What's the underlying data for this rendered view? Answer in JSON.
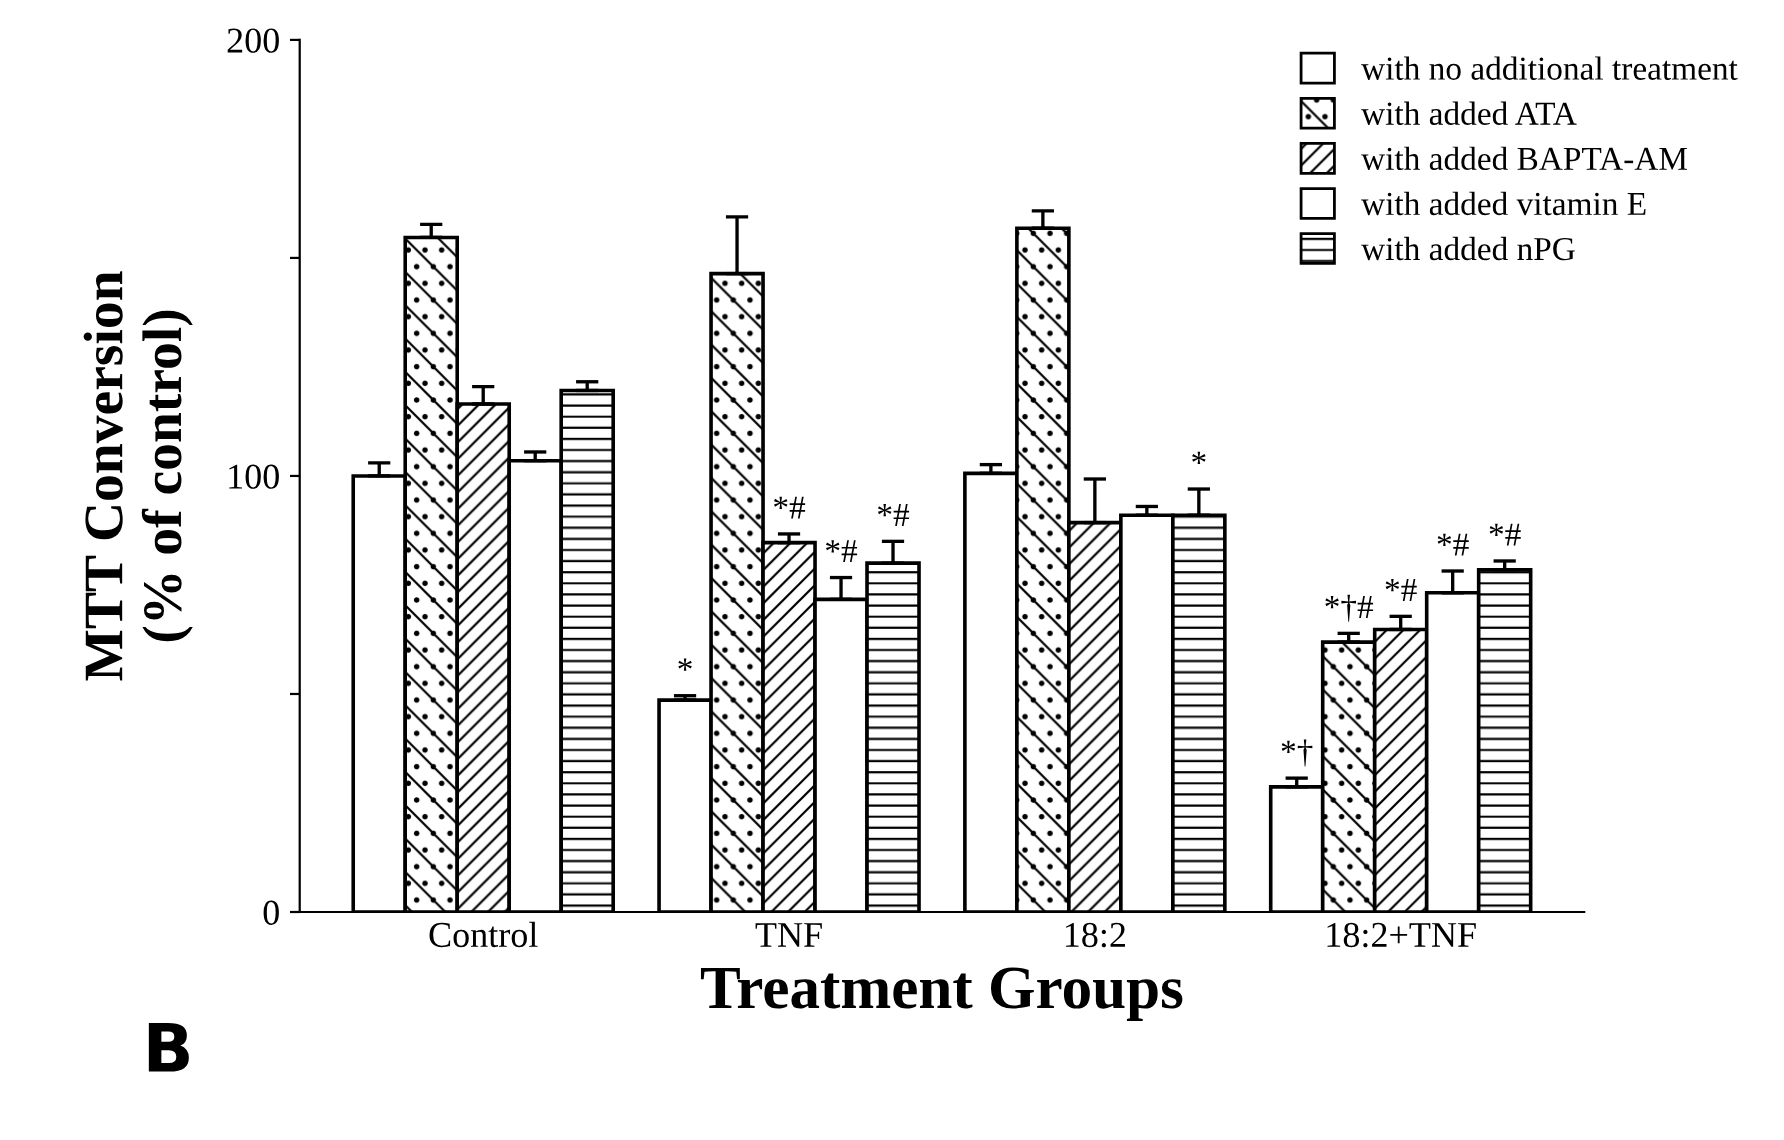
{
  "chart_data": {
    "type": "bar",
    "xlabel": "Treatment Groups",
    "ylabel": "MTT Conversion\n(% of control)",
    "categories": [
      "Control",
      "TNF",
      "18:2",
      "18:2+TNF"
    ],
    "series": [
      {
        "name": "with no additional treatment",
        "color": "#ffffff",
        "values": [
          100,
          48.6,
          100.6,
          28.7
        ],
        "errors": [
          3,
          1,
          2,
          2
        ],
        "value_labels": [
          null,
          "*",
          null,
          "*†"
        ]
      },
      {
        "name": "with added ATA",
        "color": "#000000",
        "values": [
          154.7,
          146.4,
          156.8,
          61.9
        ],
        "errors": [
          3,
          13,
          4,
          2
        ],
        "value_labels": [
          null,
          null,
          null,
          "*†#"
        ]
      },
      {
        "name": "with added BAPTA-AM",
        "color": "#000000",
        "values": [
          116.5,
          84.7,
          89.3,
          64.8
        ],
        "errors": [
          4,
          2,
          10,
          3
        ],
        "value_labels": [
          null,
          "*#",
          null,
          "*#"
        ]
      },
      {
        "name": "with added vitamin E",
        "color": "#ffffff",
        "values": [
          103.5,
          71.7,
          91,
          73.2
        ],
        "errors": [
          2,
          5,
          2,
          5
        ],
        "value_labels": [
          null,
          "*#",
          null,
          "*#"
        ]
      },
      {
        "name": "with added nPG",
        "color": "#000000",
        "values": [
          119.6,
          80,
          91,
          78.5
        ],
        "errors": [
          2,
          5,
          6,
          2
        ],
        "value_labels": [
          null,
          "*#",
          "*",
          "*#"
        ]
      }
    ],
    "ylim": [
      0,
      200
    ],
    "yticks": [
      0,
      {
        "value": 50,
        "label": null
      },
      100,
      {
        "value": 150,
        "label": null
      },
      200
    ],
    "legend": "top right",
    "grid": false,
    "annotations": [
      "B"
    ]
  }
}
